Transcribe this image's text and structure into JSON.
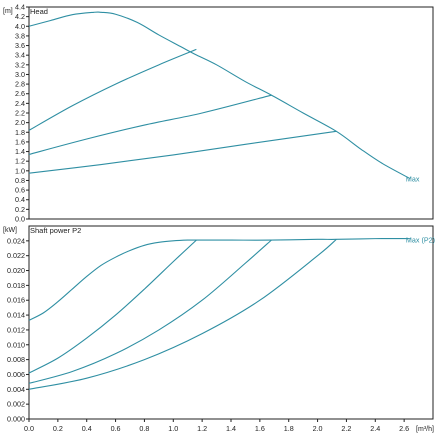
{
  "chart_data": [
    {
      "type": "line",
      "title": "Head",
      "yunit": "[m]",
      "xlim": [
        0,
        2.8
      ],
      "ylim": [
        0,
        4.4
      ],
      "yticks": [
        "0.0",
        "0.2",
        "0.4",
        "0.6",
        "0.8",
        "1.0",
        "1.2",
        "1.4",
        "1.6",
        "1.8",
        "2.0",
        "2.2",
        "2.4",
        "2.6",
        "2.8",
        "3.0",
        "3.2",
        "3.4",
        "3.6",
        "3.8",
        "4.0",
        "4.2",
        "4.4"
      ],
      "grid": false,
      "line_color": "#2f8fa3",
      "annotations": [
        {
          "text": "Max",
          "x": 2.64,
          "y": 0.84
        }
      ],
      "series": [
        {
          "x": [
            0,
            0.15,
            0.3,
            0.45,
            0.5,
            0.6,
            0.75,
            0.9,
            1.05,
            1.15,
            1.3,
            1.5,
            1.68,
            1.9,
            2.13,
            2.3,
            2.45,
            2.64
          ],
          "y": [
            4.0,
            4.12,
            4.24,
            4.29,
            4.29,
            4.25,
            4.08,
            3.82,
            3.58,
            3.42,
            3.2,
            2.85,
            2.57,
            2.2,
            1.82,
            1.45,
            1.15,
            0.84
          ]
        },
        {
          "x": [
            0,
            0.3,
            0.6,
            0.9,
            1.16
          ],
          "y": [
            1.84,
            2.35,
            2.8,
            3.2,
            3.52
          ]
        },
        {
          "x": [
            0,
            0.4,
            0.8,
            1.2,
            1.68
          ],
          "y": [
            1.34,
            1.66,
            1.95,
            2.2,
            2.57
          ]
        },
        {
          "x": [
            0,
            0.5,
            1.0,
            1.5,
            2.13
          ],
          "y": [
            0.95,
            1.13,
            1.33,
            1.55,
            1.82
          ]
        }
      ]
    },
    {
      "type": "line",
      "title": "Shaft power P2",
      "yunit": "[kW]",
      "xunit": "[m³/h]",
      "xlim": [
        0,
        2.8
      ],
      "ylim": [
        0,
        0.026
      ],
      "xticks": [
        "0.0",
        "0.2",
        "0.4",
        "0.6",
        "0.8",
        "1.0",
        "1.2",
        "1.4",
        "1.6",
        "1.8",
        "2.0",
        "2.2",
        "2.4",
        "2.6"
      ],
      "yticks": [
        "0.000",
        "0.002",
        "0.004",
        "0.006",
        "0.008",
        "0.010",
        "0.012",
        "0.014",
        "0.016",
        "0.018",
        "0.020",
        "0.022",
        "0.024"
      ],
      "grid": false,
      "line_color": "#2f8fa3",
      "annotations": [
        {
          "text": "Max (P2)",
          "x": 2.64,
          "y": 0.0242
        }
      ],
      "series": [
        {
          "x": [
            0,
            0.1,
            0.2,
            0.3,
            0.4,
            0.5,
            0.6,
            0.7,
            0.8,
            0.9,
            1.0,
            1.1,
            1.15,
            1.4,
            1.68,
            2.0,
            2.13,
            2.4,
            2.64
          ],
          "y": [
            0.0133,
            0.0143,
            0.0158,
            0.0175,
            0.0192,
            0.0207,
            0.0218,
            0.0227,
            0.0234,
            0.0238,
            0.024,
            0.0241,
            0.0241,
            0.0241,
            0.0241,
            0.0242,
            0.0242,
            0.0243,
            0.0243
          ]
        },
        {
          "x": [
            0,
            0.2,
            0.4,
            0.6,
            0.8,
            1.0,
            1.16
          ],
          "y": [
            0.0062,
            0.0082,
            0.0109,
            0.014,
            0.0175,
            0.0212,
            0.0241
          ]
        },
        {
          "x": [
            0,
            0.3,
            0.6,
            0.9,
            1.2,
            1.5,
            1.68
          ],
          "y": [
            0.0048,
            0.0064,
            0.0088,
            0.012,
            0.016,
            0.021,
            0.0241
          ]
        },
        {
          "x": [
            0,
            0.4,
            0.8,
            1.2,
            1.6,
            2.0,
            2.13
          ],
          "y": [
            0.004,
            0.0055,
            0.008,
            0.0115,
            0.016,
            0.022,
            0.0242
          ]
        }
      ]
    }
  ]
}
